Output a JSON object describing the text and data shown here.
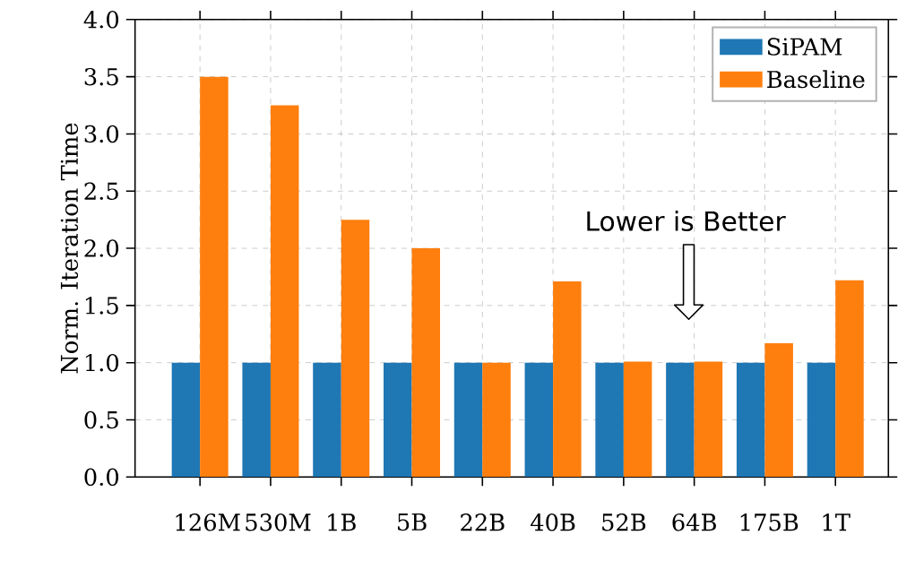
{
  "chart_data": {
    "type": "bar",
    "ylabel": "Norm. Iteration Time",
    "categories": [
      "126M",
      "530M",
      "1B",
      "5B",
      "22B",
      "40B",
      "52B",
      "64B",
      "175B",
      "1T"
    ],
    "series": [
      {
        "name": "SiPAM",
        "color": "#1f77b4",
        "values": [
          1.0,
          1.0,
          1.0,
          1.0,
          1.0,
          1.0,
          1.0,
          1.0,
          1.0,
          1.0
        ]
      },
      {
        "name": "Baseline",
        "color": "#ff7f0e",
        "values": [
          3.5,
          3.25,
          2.25,
          2.0,
          1.0,
          1.71,
          1.01,
          1.01,
          1.17,
          1.72
        ]
      }
    ],
    "ylim": [
      0,
      4
    ],
    "yticks": [
      {
        "value": 0,
        "label": "0.0"
      },
      0.5,
      {
        "value": 1,
        "label": "1.0"
      },
      1.5,
      {
        "value": 2,
        "label": "2.0"
      },
      2.5,
      {
        "value": 3,
        "label": "3.0"
      },
      3.5,
      {
        "value": 4,
        "label": "4.0"
      }
    ],
    "grid": true,
    "legend": "top right",
    "annotations": [
      "Lower is Better"
    ]
  }
}
